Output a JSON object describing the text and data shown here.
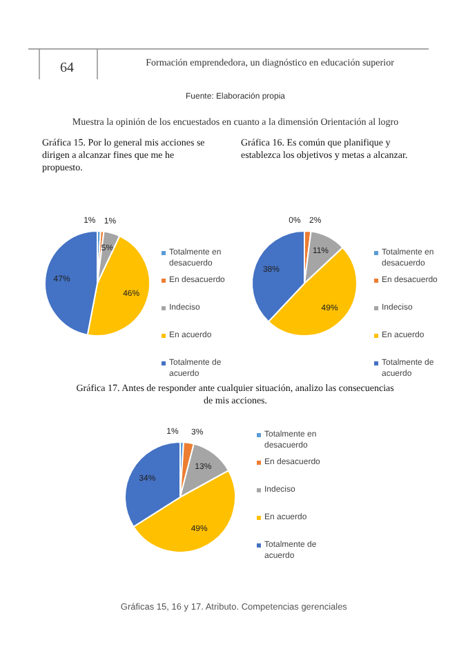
{
  "chart_data": [
    {
      "type": "pie",
      "title": "Gráfica 15. Por lo general mis acciones se dirigen a alcanzar fines que me he propuesto.",
      "categories": [
        "Totalmente en desacuerdo",
        "En desacuerdo",
        "Indeciso",
        "En acuerdo",
        "Totalmente de acuerdo"
      ],
      "values": [
        1,
        1,
        5,
        46,
        47
      ],
      "value_labels": [
        "1%",
        "1%",
        "5%",
        "46%",
        "47%"
      ],
      "colors": [
        "#5b9bd5",
        "#ed7d31",
        "#a5a5a5",
        "#ffc000",
        "#4472c4"
      ],
      "legend": "right",
      "annotations": [
        "64",
        "Formación emprendedora, un diagnóstico en educación superior",
        "Fuente: Elaboración propia",
        "Muestra la opinión de los encuestados en cuanto a la dimensión Orientación al logro"
      ]
    },
    {
      "type": "pie",
      "title": "Gráfica 16. Es común que planifique y establezca los objetivos y metas a alcanzar.",
      "categories": [
        "Totalmente en desacuerdo",
        "En desacuerdo",
        "Indeciso",
        "En acuerdo",
        "Totalmente de acuerdo"
      ],
      "values": [
        0,
        2,
        11,
        49,
        38
      ],
      "value_labels": [
        "0%",
        "2%",
        "11%",
        "49%",
        "38%"
      ],
      "colors": [
        "#5b9bd5",
        "#ed7d31",
        "#a5a5a5",
        "#ffc000",
        "#4472c4"
      ],
      "legend": "right"
    },
    {
      "type": "pie",
      "title": "Gráfica 17. Antes de responder ante cualquier situación, analizo las consecuencias de mis acciones.",
      "categories": [
        "Totalmente en desacuerdo",
        "En desacuerdo",
        "Indeciso",
        "En acuerdo",
        "Totalmente de acuerdo"
      ],
      "values": [
        1,
        3,
        13,
        49,
        34
      ],
      "value_labels": [
        "1%",
        "3%",
        "13%",
        "49%",
        "34%"
      ],
      "colors": [
        "#5b9bd5",
        "#ed7d31",
        "#a5a5a5",
        "#ffc000",
        "#4472c4"
      ],
      "legend": "right",
      "annotations": [
        "Gráficas 15, 16 y 17.  Atributo. Competencias gerenciales"
      ]
    }
  ]
}
